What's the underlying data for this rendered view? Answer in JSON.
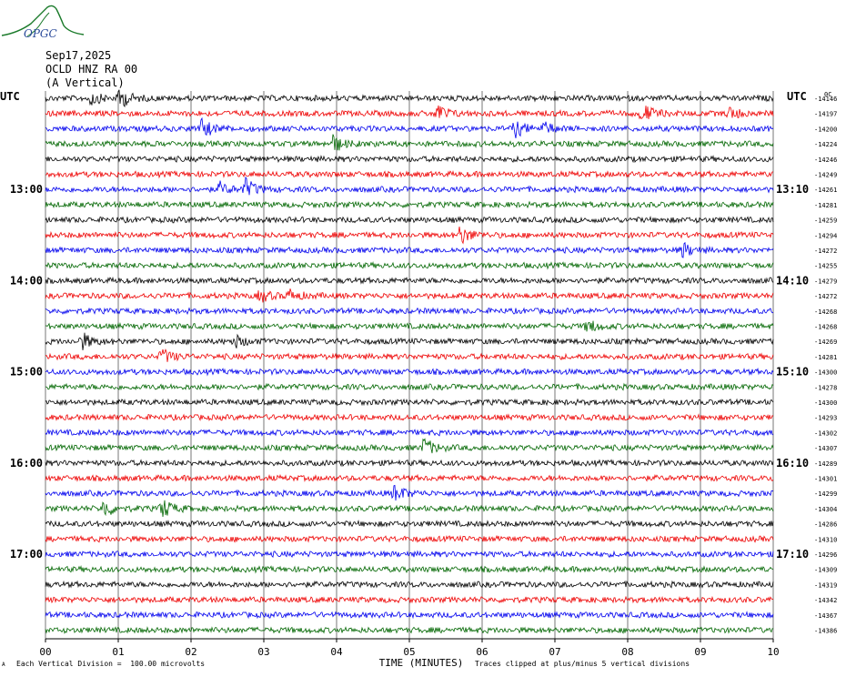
{
  "logo": {
    "text": "OPGC"
  },
  "header": {
    "date": "Sep17,2025",
    "station": "OCLD HNZ RA 00",
    "component": "(A Vertical)"
  },
  "left_tz": "UTC",
  "right_tz": "UTC",
  "right_top_extra": "0C",
  "footer": {
    "scale_note": "Each Vertical Division =  100.00 microvolts",
    "clip_note": "Traces clipped at plus/minus 5 vertical divisions",
    "corner_mark": "A"
  },
  "colors": {
    "black": "#000000",
    "red": "#ee0000",
    "blue": "#0000ee",
    "green": "#006600",
    "grid": "#555555"
  },
  "chart_data": {
    "type": "line",
    "title": "",
    "xlabel": "TIME (MINUTES)",
    "ylabel": "",
    "xlim": [
      0,
      10
    ],
    "x_tick_labels": [
      "00",
      "01",
      "02",
      "03",
      "04",
      "05",
      "06",
      "07",
      "08",
      "09",
      "10"
    ],
    "trace_count": 36,
    "trace_color_cycle": [
      "black",
      "red",
      "blue",
      "green"
    ],
    "left_hour_labels": [
      {
        "trace": 6,
        "label": "13:00"
      },
      {
        "trace": 12,
        "label": "14:00"
      },
      {
        "trace": 18,
        "label": "15:00"
      },
      {
        "trace": 24,
        "label": "16:00"
      },
      {
        "trace": 30,
        "label": "17:00"
      }
    ],
    "right_hour_labels": [
      {
        "trace": 6,
        "label": "13:10"
      },
      {
        "trace": 12,
        "label": "14:10"
      },
      {
        "trace": 18,
        "label": "15:10"
      },
      {
        "trace": 24,
        "label": "16:10"
      },
      {
        "trace": 30,
        "label": "17:10"
      }
    ],
    "trace_offsets": [
      "-14146",
      "-14197",
      "-14200",
      "-14224",
      "-14246",
      "-14249",
      "-14261",
      "-14281",
      "-14259",
      "-14294",
      "-14272",
      "-14255",
      "-14279",
      "-14272",
      "-14268",
      "-14268",
      "-14269",
      "-14281",
      "-14300",
      "-14278",
      "-14300",
      "-14293",
      "-14302",
      "-14307",
      "-14289",
      "-14301",
      "-14299",
      "-14304",
      "-14286",
      "-14310",
      "-14296",
      "-14309",
      "-14319",
      "-14342",
      "-14367",
      "-14386"
    ],
    "events": [
      {
        "trace": 0,
        "minute": 1.02,
        "amp": 2.2
      },
      {
        "trace": 0,
        "minute": 0.62,
        "amp": 1.4
      },
      {
        "trace": 1,
        "minute": 5.38,
        "amp": 2.0
      },
      {
        "trace": 1,
        "minute": 8.2,
        "amp": 2.2
      },
      {
        "trace": 1,
        "minute": 9.4,
        "amp": 1.3
      },
      {
        "trace": 2,
        "minute": 2.15,
        "amp": 2.0
      },
      {
        "trace": 2,
        "minute": 6.45,
        "amp": 1.8
      },
      {
        "trace": 2,
        "minute": 6.85,
        "amp": 1.2
      },
      {
        "trace": 3,
        "minute": 3.95,
        "amp": 1.8
      },
      {
        "trace": 6,
        "minute": 2.75,
        "amp": 2.1
      },
      {
        "trace": 6,
        "minute": 2.4,
        "amp": 1.3
      },
      {
        "trace": 9,
        "minute": 5.7,
        "amp": 2.0
      },
      {
        "trace": 10,
        "minute": 8.75,
        "amp": 1.6
      },
      {
        "trace": 13,
        "minute": 2.95,
        "amp": 1.3
      },
      {
        "trace": 13,
        "minute": 3.35,
        "amp": 1.2
      },
      {
        "trace": 15,
        "minute": 7.45,
        "amp": 1.4
      },
      {
        "trace": 16,
        "minute": 0.5,
        "amp": 1.8
      },
      {
        "trace": 16,
        "minute": 2.6,
        "amp": 1.3
      },
      {
        "trace": 17,
        "minute": 1.6,
        "amp": 1.6
      },
      {
        "trace": 23,
        "minute": 5.2,
        "amp": 2.0
      },
      {
        "trace": 26,
        "minute": 4.8,
        "amp": 1.8
      },
      {
        "trace": 27,
        "minute": 0.8,
        "amp": 1.9
      },
      {
        "trace": 27,
        "minute": 1.6,
        "amp": 2.2
      }
    ]
  }
}
